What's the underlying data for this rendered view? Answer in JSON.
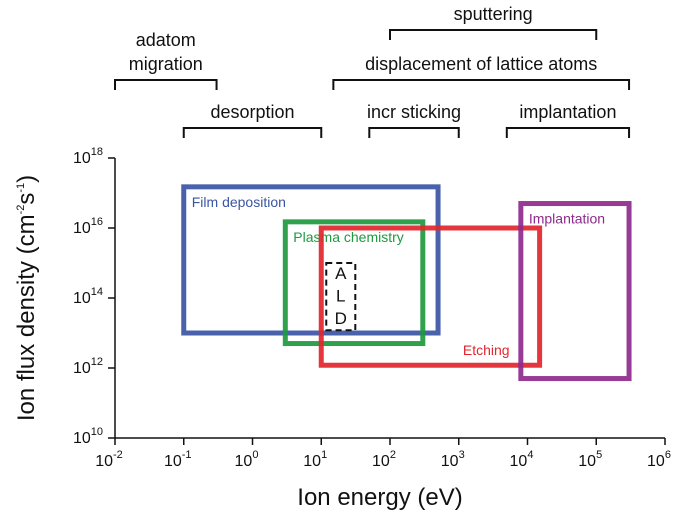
{
  "chart_data": {
    "type": "region-map",
    "xlabel": "Ion energy (eV)",
    "ylabel_base": "Ion flux density (cm",
    "ylabel_exp1": "-2",
    "ylabel_mid": "s",
    "ylabel_exp2": "-1",
    "ylabel_end": ")",
    "x_scale": "log",
    "y_scale": "log",
    "xlim": [
      0.01,
      1000000
    ],
    "ylim": [
      10000000000.0,
      1e+18
    ],
    "x_ticks": [
      {
        "base": "10",
        "exp": "-2",
        "value": 0.01
      },
      {
        "base": "10",
        "exp": "-1",
        "value": 0.1
      },
      {
        "base": "10",
        "exp": "0",
        "value": 1
      },
      {
        "base": "10",
        "exp": "1",
        "value": 10
      },
      {
        "base": "10",
        "exp": "2",
        "value": 100
      },
      {
        "base": "10",
        "exp": "3",
        "value": 1000
      },
      {
        "base": "10",
        "exp": "4",
        "value": 10000
      },
      {
        "base": "10",
        "exp": "5",
        "value": 100000
      },
      {
        "base": "10",
        "exp": "6",
        "value": 1000000
      }
    ],
    "y_ticks": [
      {
        "base": "10",
        "exp": "10",
        "value": 10000000000.0
      },
      {
        "base": "10",
        "exp": "12",
        "value": 1000000000000.0
      },
      {
        "base": "10",
        "exp": "14",
        "value": 100000000000000.0
      },
      {
        "base": "10",
        "exp": "16",
        "value": 1e+16
      },
      {
        "base": "10",
        "exp": "18",
        "value": 1e+18
      }
    ],
    "regions": [
      {
        "name": "Film deposition",
        "color": "#3a55a4",
        "x_range": [
          0.1,
          500
        ],
        "y_range": [
          10000000000000.0,
          1.5e+17
        ],
        "label_at": "top-left"
      },
      {
        "name": "Plasma chemistry",
        "color": "#1e9a3f",
        "x_range": [
          3,
          300
        ],
        "y_range": [
          5000000000000.0,
          1.5e+16
        ],
        "label_at": "top-left"
      },
      {
        "name": "Etching",
        "color": "#e2262c",
        "x_range": [
          10,
          15000
        ],
        "y_range": [
          1200000000000.0,
          1e+16
        ],
        "label_at": "bottom-right"
      },
      {
        "name": "Implantation",
        "color": "#8e2a8e",
        "x_range": [
          8000,
          300000
        ],
        "y_range": [
          500000000000.0,
          5e+16
        ],
        "label_at": "top-left"
      }
    ],
    "ald": {
      "letters": [
        "A",
        "L",
        "D"
      ],
      "x_range": [
        10,
        50
      ],
      "y_range": [
        12000000000000.0,
        1000000000000000.0
      ],
      "color": "#111111"
    },
    "brackets": [
      {
        "label": "sputtering",
        "x_range": [
          100,
          100000
        ],
        "row": 0
      },
      {
        "label": "adatom",
        "label2": "migration",
        "x_range": [
          0.01,
          0.3
        ],
        "row": 1
      },
      {
        "label": "displacement of lattice atoms",
        "x_range": [
          15,
          300000
        ],
        "row": 1
      },
      {
        "label": "desorption",
        "x_range": [
          0.1,
          10
        ],
        "row": 2
      },
      {
        "label": "incr sticking",
        "x_range": [
          50,
          1000
        ],
        "row": 2
      },
      {
        "label": "implantation",
        "x_range": [
          5000,
          300000
        ],
        "row": 2
      }
    ]
  }
}
